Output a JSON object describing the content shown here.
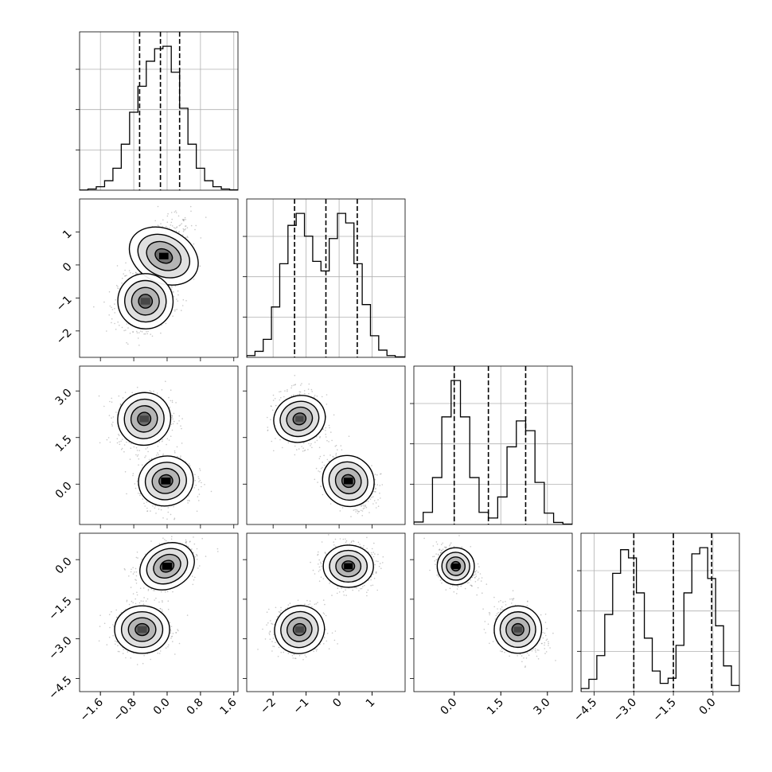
{
  "chart_data": {
    "type": "corner",
    "grid": true,
    "dims": [
      {
        "range": [
          -2.1,
          1.7
        ],
        "ticks": [
          -1.6,
          -0.8,
          0.0,
          0.8,
          1.6
        ],
        "tick_labels": [
          "−1.6",
          "−0.8",
          "0.0",
          "0.8",
          "1.6"
        ],
        "quantiles": [
          -0.66,
          -0.16,
          0.3
        ],
        "hist": {
          "edges": [
            -2.1,
            -1.9,
            -1.7,
            -1.5,
            -1.3,
            -1.1,
            -0.9,
            -0.7,
            -0.5,
            -0.3,
            -0.1,
            0.1,
            0.3,
            0.5,
            0.7,
            0.9,
            1.1,
            1.3,
            1.5,
            1.7
          ],
          "counts": [
            2,
            12,
            35,
            95,
            220,
            460,
            780,
            1040,
            1290,
            1415,
            1440,
            1180,
            820,
            460,
            220,
            95,
            35,
            12,
            4
          ]
        }
      },
      {
        "range": [
          -2.8,
          2.0
        ],
        "ticks": [
          -2,
          -1,
          0,
          1
        ],
        "tick_labels": [
          "−2",
          "−1",
          "0",
          "1"
        ],
        "quantiles": [
          -1.35,
          -0.4,
          0.55
        ],
        "hist": {
          "edges": [
            -2.8,
            -2.55,
            -2.3,
            -2.05,
            -1.8,
            -1.55,
            -1.3,
            -1.05,
            -0.8,
            -0.55,
            -0.3,
            -0.05,
            0.2,
            0.45,
            0.7,
            0.95,
            1.2,
            1.45,
            1.7,
            2.0
          ],
          "counts": [
            15,
            50,
            150,
            420,
            780,
            1100,
            1200,
            1010,
            800,
            720,
            990,
            1200,
            1120,
            780,
            440,
            180,
            60,
            15,
            4
          ]
        }
      },
      {
        "range": [
          -1.3,
          3.8
        ],
        "ticks": [
          0.0,
          1.5,
          3.0
        ],
        "tick_labels": [
          "0.0",
          "1.5",
          "3.0"
        ],
        "quantiles": [
          0.0,
          1.1,
          2.3
        ],
        "hist": {
          "edges": [
            -1.3,
            -1.0,
            -0.7,
            -0.4,
            -0.1,
            0.2,
            0.5,
            0.8,
            1.1,
            1.4,
            1.7,
            2.0,
            2.3,
            2.6,
            2.9,
            3.2,
            3.5,
            3.8
          ],
          "counts": [
            30,
            150,
            580,
            1330,
            1780,
            1330,
            580,
            150,
            80,
            340,
            960,
            1280,
            1160,
            520,
            140,
            25,
            5
          ]
        }
      },
      {
        "range": [
          -5.0,
          1.0
        ],
        "ticks": [
          -4.5,
          -3.0,
          -1.5,
          0.0
        ],
        "tick_labels": [
          "−4.5",
          "−3.0",
          "−1.5",
          "0.0"
        ],
        "quantiles": [
          -3.0,
          -1.5,
          -0.05
        ],
        "hist": {
          "edges": [
            -5.0,
            -4.7,
            -4.4,
            -4.1,
            -3.8,
            -3.5,
            -3.2,
            -2.9,
            -2.6,
            -2.3,
            -2.0,
            -1.7,
            -1.4,
            -1.1,
            -0.8,
            -0.5,
            -0.2,
            0.1,
            0.4,
            0.7,
            1.0
          ],
          "counts": [
            30,
            120,
            350,
            750,
            1150,
            1380,
            1300,
            960,
            520,
            200,
            80,
            130,
            450,
            960,
            1340,
            1400,
            1100,
            640,
            250,
            60
          ]
        }
      }
    ],
    "pairs": [
      {
        "row": 1,
        "col": 0,
        "clusters": [
          {
            "mean": [
              -0.08,
              0.27
            ],
            "sd": [
              0.32,
              0.55
            ],
            "corr": 0.45,
            "peak": 1.0
          },
          {
            "mean": [
              -0.52,
              -1.1
            ],
            "sd": [
              0.33,
              0.42
            ],
            "corr": 0.15,
            "peak": 0.92
          }
        ]
      },
      {
        "row": 2,
        "col": 0,
        "clusters": [
          {
            "mean": [
              -0.55,
              2.1
            ],
            "sd": [
              0.32,
              0.42
            ],
            "corr": 0.1,
            "peak": 0.82
          },
          {
            "mean": [
              -0.03,
              0.1
            ],
            "sd": [
              0.33,
              0.4
            ],
            "corr": 0.05,
            "peak": 1.0
          }
        ]
      },
      {
        "row": 2,
        "col": 1,
        "clusters": [
          {
            "mean": [
              -1.2,
              2.1
            ],
            "sd": [
              0.35,
              0.42
            ],
            "corr": -0.1,
            "peak": 0.85
          },
          {
            "mean": [
              0.28,
              0.1
            ],
            "sd": [
              0.4,
              0.4
            ],
            "corr": -0.3,
            "peak": 1.0
          }
        ]
      },
      {
        "row": 3,
        "col": 0,
        "clusters": [
          {
            "mean": [
              0.0,
              -0.25
            ],
            "sd": [
              0.34,
              0.42
            ],
            "corr": 0.35,
            "peak": 1.0
          },
          {
            "mean": [
              -0.6,
              -2.65
            ],
            "sd": [
              0.33,
              0.45
            ],
            "corr": 0.0,
            "peak": 0.85
          }
        ]
      },
      {
        "row": 3,
        "col": 1,
        "clusters": [
          {
            "mean": [
              0.28,
              -0.25
            ],
            "sd": [
              0.38,
              0.4
            ],
            "corr": 0.0,
            "peak": 1.0
          },
          {
            "mean": [
              -1.2,
              -2.65
            ],
            "sd": [
              0.38,
              0.45
            ],
            "corr": 0.05,
            "peak": 0.85
          }
        ]
      },
      {
        "row": 3,
        "col": 2,
        "clusters": [
          {
            "mean": [
              0.05,
              -0.25
            ],
            "sd": [
              0.3,
              0.35
            ],
            "corr": -0.3,
            "peak": 1.0
          },
          {
            "mean": [
              2.05,
              -2.65
            ],
            "sd": [
              0.38,
              0.45
            ],
            "corr": -0.3,
            "peak": 0.85
          }
        ]
      }
    ]
  }
}
